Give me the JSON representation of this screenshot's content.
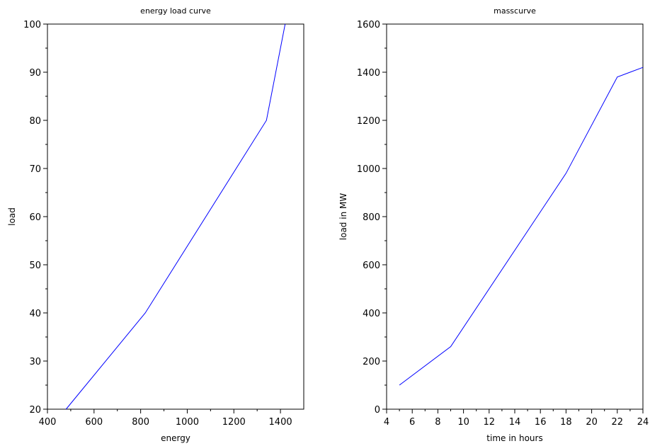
{
  "chart_data": [
    {
      "type": "line",
      "title": "energy load curve",
      "xlabel": "energy",
      "ylabel": "load",
      "xlim": [
        400,
        1500
      ],
      "ylim": [
        20,
        100
      ],
      "x_ticks": [
        400,
        600,
        800,
        1000,
        1200,
        1400
      ],
      "y_ticks": [
        20,
        30,
        40,
        50,
        60,
        70,
        80,
        90,
        100
      ],
      "grid": false,
      "series": [
        {
          "color": "#0000ff",
          "x": [
            480,
            820,
            1340,
            1420
          ],
          "y": [
            20,
            40,
            80,
            100
          ]
        }
      ]
    },
    {
      "type": "line",
      "title": "masscurve",
      "xlabel": "time in hours",
      "ylabel": "load in MW",
      "xlim": [
        4,
        24
      ],
      "ylim": [
        0,
        1600
      ],
      "x_ticks": [
        4,
        6,
        8,
        10,
        12,
        14,
        16,
        18,
        20,
        22,
        24
      ],
      "y_ticks": [
        0,
        200,
        400,
        600,
        800,
        1000,
        1200,
        1400,
        1600
      ],
      "grid": false,
      "series": [
        {
          "color": "#0000ff",
          "x": [
            5,
            9,
            18,
            22,
            24
          ],
          "y": [
            100,
            260,
            980,
            1380,
            1420
          ]
        }
      ]
    }
  ]
}
